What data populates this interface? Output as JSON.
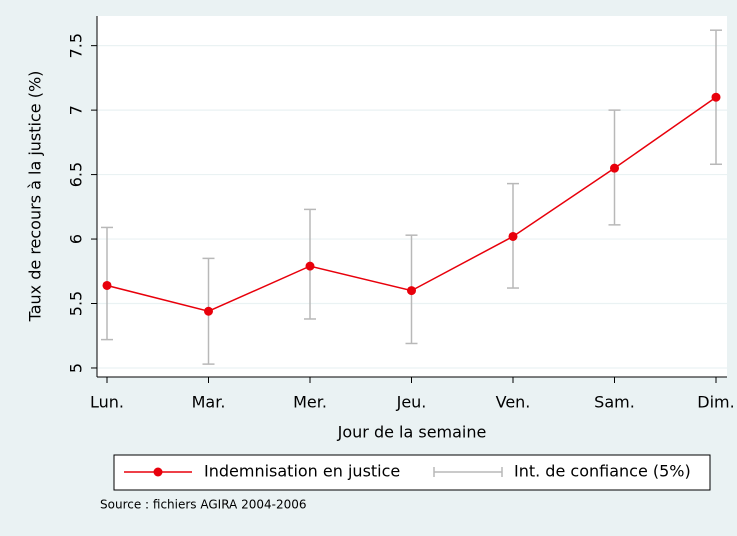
{
  "chart_data": {
    "type": "line",
    "categories": [
      "Lun.",
      "Mar.",
      "Mer.",
      "Jeu.",
      "Ven.",
      "Sam.",
      "Dim."
    ],
    "series": [
      {
        "name": "Indemnisation en justice",
        "color": "#e8000b",
        "values": [
          5.64,
          5.44,
          5.79,
          5.6,
          6.02,
          6.55,
          7.1
        ]
      }
    ],
    "confidence": {
      "name": "Int. de confiance (5%)",
      "color": "#b8b8b8",
      "lows": [
        5.22,
        5.03,
        5.38,
        5.19,
        5.62,
        6.11,
        6.58
      ],
      "highs": [
        6.09,
        5.85,
        6.23,
        6.03,
        6.43,
        7.0,
        7.62
      ]
    },
    "xlabel": "Jour de la semaine",
    "ylabel": "Taux de recours à la justice (%)",
    "ylim": [
      4.93,
      7.73
    ],
    "yticks": [
      5,
      5.5,
      6,
      6.5,
      7,
      7.5
    ],
    "grid": true,
    "source": "Source : fichiers AGIRA 2004-2006"
  }
}
